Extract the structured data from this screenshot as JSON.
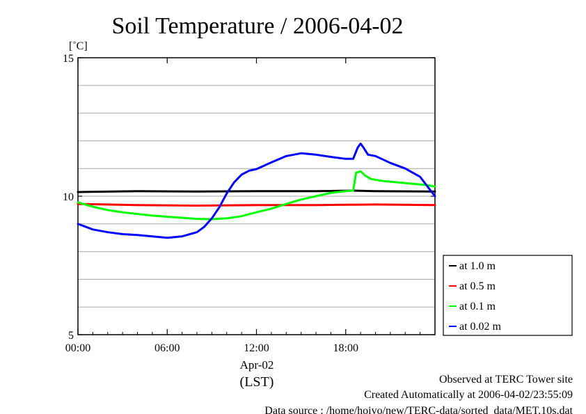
{
  "chart_data": {
    "type": "line",
    "title": "Soil Temperature / 2006-04-02",
    "ylabel": "[˚C]",
    "xlabel_date": "Apr-02",
    "xlabel_tz": "(LST)",
    "ylim": [
      5,
      15
    ],
    "xlim": [
      0,
      24
    ],
    "yticks": [
      "5",
      "10",
      "15"
    ],
    "xticks": [
      {
        "value": 0,
        "label": "00:00"
      },
      {
        "value": 6,
        "label": "06:00"
      },
      {
        "value": 12,
        "label": "12:00"
      },
      {
        "value": 18,
        "label": "18:00"
      }
    ],
    "grid": "horizontal",
    "legend_position": "right",
    "series": [
      {
        "name": "at 1.0 m",
        "color": "#000000",
        "x": [
          0,
          4,
          8,
          12,
          16,
          18.5,
          20,
          24
        ],
        "y": [
          10.15,
          10.18,
          10.17,
          10.18,
          10.18,
          10.2,
          10.18,
          10.17
        ]
      },
      {
        "name": "at 0.5 m",
        "color": "#ff0000",
        "x": [
          0,
          4,
          8,
          12,
          16,
          20,
          24
        ],
        "y": [
          9.72,
          9.68,
          9.66,
          9.68,
          9.68,
          9.7,
          9.68
        ]
      },
      {
        "name": "at 0.1 m",
        "color": "#00ff00",
        "x": [
          0,
          1,
          2,
          3,
          4,
          5,
          6,
          7,
          8,
          9,
          10,
          11,
          12,
          13,
          14,
          15,
          16,
          17,
          18,
          18.5,
          18.7,
          19.0,
          19.3,
          19.7,
          20.5,
          21.5,
          22.5,
          23.5,
          24
        ],
        "y": [
          9.78,
          9.62,
          9.5,
          9.42,
          9.36,
          9.3,
          9.26,
          9.22,
          9.18,
          9.17,
          9.2,
          9.28,
          9.42,
          9.55,
          9.72,
          9.88,
          10.0,
          10.12,
          10.18,
          10.2,
          10.85,
          10.9,
          10.75,
          10.62,
          10.55,
          10.5,
          10.45,
          10.4,
          10.35
        ]
      },
      {
        "name": "at 0.02 m",
        "color": "#0000ff",
        "x": [
          0,
          1,
          2,
          3,
          4,
          5,
          6,
          7,
          8,
          8.5,
          9,
          9.5,
          10,
          10.5,
          11,
          11.5,
          12,
          12.5,
          13,
          14,
          15,
          16,
          17,
          18,
          18.5,
          18.8,
          19.0,
          19.2,
          19.5,
          20,
          21,
          22,
          23,
          23.5,
          24
        ],
        "y": [
          9.0,
          8.8,
          8.7,
          8.63,
          8.6,
          8.55,
          8.5,
          8.55,
          8.7,
          8.9,
          9.2,
          9.6,
          10.1,
          10.5,
          10.78,
          10.92,
          10.98,
          11.1,
          11.22,
          11.45,
          11.55,
          11.5,
          11.42,
          11.35,
          11.35,
          11.75,
          11.9,
          11.75,
          11.5,
          11.45,
          11.2,
          11.0,
          10.7,
          10.35,
          10.0
        ]
      }
    ]
  },
  "footer": {
    "site": "Observed at TERC Tower site",
    "created": "Created Automatically at 2006-04-02/23:55:09",
    "source": "Data source : /home/hoivo/new/TERC-data/sorted_data/MET.10s.dat"
  }
}
